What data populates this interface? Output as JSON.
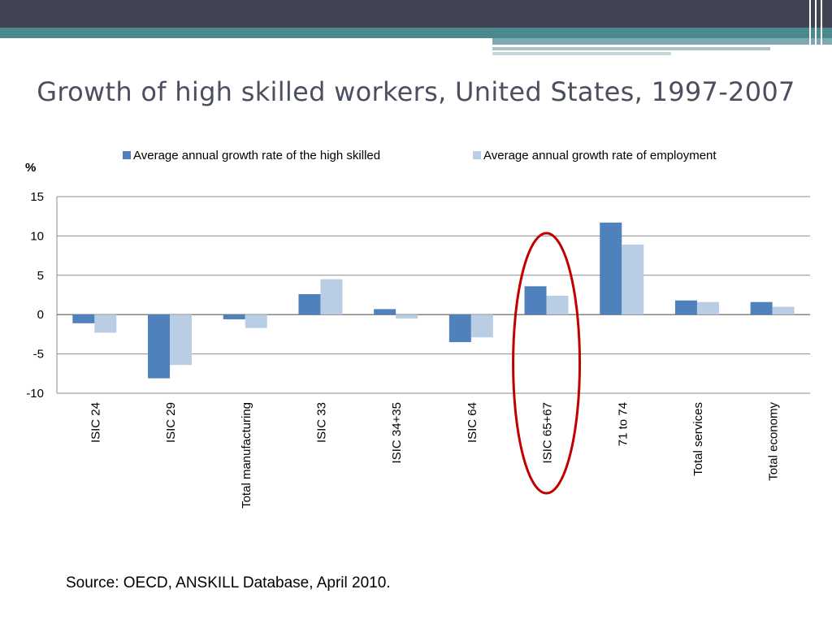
{
  "slide": {
    "title": "Growth of high skilled workers, United States, 1997-2007",
    "source": "Source: OECD, ANSKILL Database, April 2010."
  },
  "theme": {
    "header_dark": "#414353",
    "header_teal": "#4a8a8f",
    "series_dark": "#4f81bd",
    "series_light": "#b9cde5",
    "highlight": "#c00000"
  },
  "chart_data": {
    "type": "bar",
    "ylabel": "%",
    "ylim": [
      -10,
      15
    ],
    "yticks": [
      15,
      10,
      5,
      0,
      -5,
      -10
    ],
    "grid": true,
    "legend_position": "top",
    "categories": [
      "ISIC 24",
      "ISIC 29",
      "Total manufacturing",
      "ISIC 33",
      "ISIC 34+35",
      "ISIC 64",
      "ISIC 65+67",
      "71 to 74",
      "Total services",
      "Total economy"
    ],
    "series": [
      {
        "name": "Average annual growth rate of the high skilled",
        "color": "#4f81bd",
        "values": [
          -1.1,
          -8.1,
          -0.6,
          2.6,
          0.7,
          -3.5,
          3.6,
          11.7,
          1.8,
          1.6
        ]
      },
      {
        "name": "Average annual growth rate of employment",
        "color": "#b9cde5",
        "values": [
          -2.3,
          -6.4,
          -1.7,
          4.5,
          -0.5,
          -2.9,
          2.4,
          8.9,
          1.6,
          1.0
        ]
      }
    ],
    "highlighted_category": "ISIC 65+67"
  }
}
